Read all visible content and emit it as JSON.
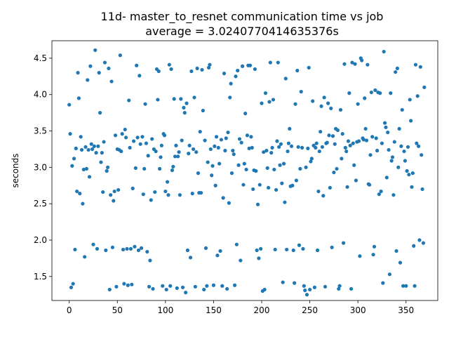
{
  "chart_data": {
    "type": "scatter",
    "title_line1": "11d- master_to_resnet communication time vs job",
    "title_line2": "average = 3.0240770414635376s",
    "xlabel": "",
    "ylabel": "seconds",
    "xlim": [
      -18,
      383
    ],
    "ylim": [
      1.17,
      4.74
    ],
    "xticks": [
      0,
      50,
      100,
      150,
      200,
      250,
      300,
      350
    ],
    "yticks": [
      1.5,
      2.0,
      2.5,
      3.0,
      3.5,
      4.0,
      4.5
    ],
    "ytick_labels": [
      "1.5",
      "2.0",
      "2.5",
      "3.0",
      "3.5",
      "4.0",
      "4.5"
    ],
    "marker_color": "#1f77b4",
    "grid": false,
    "points": [
      [
        0,
        3.86
      ],
      [
        1,
        3.46
      ],
      [
        2,
        1.35
      ],
      [
        3,
        3.02
      ],
      [
        4,
        1.4
      ],
      [
        5,
        3.12
      ],
      [
        6,
        1.87
      ],
      [
        7,
        3.26
      ],
      [
        8,
        2.67
      ],
      [
        9,
        4.3
      ],
      [
        10,
        3.95
      ],
      [
        11,
        2.64
      ],
      [
        12,
        3.42
      ],
      [
        13,
        3.24
      ],
      [
        14,
        2.5
      ],
      [
        15,
        2.97
      ],
      [
        16,
        1.77
      ],
      [
        17,
        3.28
      ],
      [
        18,
        2.98
      ],
      [
        19,
        4.2
      ],
      [
        20,
        3.24
      ],
      [
        21,
        2.87
      ],
      [
        22,
        4.39
      ],
      [
        23,
        3.32
      ],
      [
        24,
        3.25
      ],
      [
        25,
        1.94
      ],
      [
        26,
        3.29
      ],
      [
        27,
        4.61
      ],
      [
        28,
        3.2
      ],
      [
        29,
        1.88
      ],
      [
        30,
        3.29
      ],
      [
        31,
        4.3
      ],
      [
        32,
        3.75
      ],
      [
        33,
        3.07
      ],
      [
        34,
        3.2
      ],
      [
        35,
        2.66
      ],
      [
        36,
        3.35
      ],
      [
        37,
        4.44
      ],
      [
        38,
        1.86
      ],
      [
        39,
        2.95
      ],
      [
        40,
        3.0
      ],
      [
        41,
        4.36
      ],
      [
        42,
        1.32
      ],
      [
        43,
        2.62
      ],
      [
        44,
        4.18
      ],
      [
        45,
        1.9
      ],
      [
        46,
        2.54
      ],
      [
        47,
        2.67
      ],
      [
        48,
        3.44
      ],
      [
        49,
        1.36
      ],
      [
        50,
        3.25
      ],
      [
        51,
        2.69
      ],
      [
        52,
        3.24
      ],
      [
        53,
        4.54
      ],
      [
        54,
        3.22
      ],
      [
        55,
        3.46
      ],
      [
        56,
        1.87
      ],
      [
        57,
        1.4
      ],
      [
        58,
        3.52
      ],
      [
        59,
        3.41
      ],
      [
        60,
        1.88
      ],
      [
        61,
        1.38
      ],
      [
        62,
        3.92
      ],
      [
        63,
        3.27
      ],
      [
        64,
        1.88
      ],
      [
        65,
        1.39
      ],
      [
        66,
        2.71
      ],
      [
        67,
        3.36
      ],
      [
        68,
        1.91
      ],
      [
        69,
        2.99
      ],
      [
        70,
        4.4
      ],
      [
        71,
        3.41
      ],
      [
        72,
        1.86
      ],
      [
        73,
        4.26
      ],
      [
        74,
        3.32
      ],
      [
        75,
        1.89
      ],
      [
        76,
        3.42
      ],
      [
        77,
        2.63
      ],
      [
        78,
        2.98
      ],
      [
        79,
        3.87
      ],
      [
        80,
        3.33
      ],
      [
        81,
        1.84
      ],
      [
        82,
        3.16
      ],
      [
        83,
        1.36
      ],
      [
        84,
        1.72
      ],
      [
        85,
        2.55
      ],
      [
        86,
        3.39
      ],
      [
        87,
        1.33
      ],
      [
        88,
        3.25
      ],
      [
        89,
        2.66
      ],
      [
        90,
        3.22
      ],
      [
        91,
        4.35
      ],
      [
        92,
        3.93
      ],
      [
        93,
        4.32
      ],
      [
        94,
        2.98
      ],
      [
        95,
        3.14
      ],
      [
        96,
        3.3
      ],
      [
        97,
        1.37
      ],
      [
        98,
        3.46
      ],
      [
        99,
        3.44
      ],
      [
        100,
        2.67
      ],
      [
        101,
        1.32
      ],
      [
        102,
        2.8
      ],
      [
        103,
        2.62
      ],
      [
        104,
        4.41
      ],
      [
        105,
        1.37
      ],
      [
        106,
        4.35
      ],
      [
        107,
        2.96
      ],
      [
        108,
        3.01
      ],
      [
        109,
        3.94
      ],
      [
        110,
        3.15
      ],
      [
        111,
        3.3
      ],
      [
        112,
        1.34
      ],
      [
        113,
        3.15
      ],
      [
        114,
        3.21
      ],
      [
        115,
        2.62
      ],
      [
        116,
        3.94
      ],
      [
        117,
        3.37
      ],
      [
        118,
        1.35
      ],
      [
        119,
        3.82
      ],
      [
        120,
        3.75
      ],
      [
        121,
        1.28
      ],
      [
        122,
        3.88
      ],
      [
        123,
        1.86
      ],
      [
        124,
        3.19
      ],
      [
        125,
        3.3
      ],
      [
        126,
        1.76
      ],
      [
        127,
        4.32
      ],
      [
        128,
        2.64
      ],
      [
        129,
        3.25
      ],
      [
        130,
        3.96
      ],
      [
        131,
        1.36
      ],
      [
        132,
        3.21
      ],
      [
        133,
        4.36
      ],
      [
        134,
        2.92
      ],
      [
        135,
        2.65
      ],
      [
        136,
        3.49
      ],
      [
        137,
        2.65
      ],
      [
        138,
        4.34
      ],
      [
        139,
        3.78
      ],
      [
        140,
        1.32
      ],
      [
        141,
        3.37
      ],
      [
        142,
        1.89
      ],
      [
        143,
        1.37
      ],
      [
        144,
        3.07
      ],
      [
        145,
        4.37
      ],
      [
        146,
        4.41
      ],
      [
        147,
        3.25
      ],
      [
        148,
        2.89
      ],
      [
        149,
        3.02
      ],
      [
        150,
        1.38
      ],
      [
        151,
        3.29
      ],
      [
        152,
        2.75
      ],
      [
        153,
        3.42
      ],
      [
        154,
        1.79
      ],
      [
        155,
        3.27
      ],
      [
        156,
        3.05
      ],
      [
        157,
        1.85
      ],
      [
        158,
        3.38
      ],
      [
        159,
        1.37
      ],
      [
        160,
        2.58
      ],
      [
        161,
        4.29
      ],
      [
        162,
        3.23
      ],
      [
        163,
        3.4
      ],
      [
        164,
        1.33
      ],
      [
        165,
        3.48
      ],
      [
        166,
        2.51
      ],
      [
        167,
        3.96
      ],
      [
        168,
        4.15
      ],
      [
        169,
        2.92
      ],
      [
        170,
        3.23
      ],
      [
        171,
        3.18
      ],
      [
        172,
        1.38
      ],
      [
        173,
        4.25
      ],
      [
        174,
        1.94
      ],
      [
        175,
        4.33
      ],
      [
        176,
        3.03
      ],
      [
        177,
        3.39
      ],
      [
        178,
        1.72
      ],
      [
        179,
        3.34
      ],
      [
        180,
        4.39
      ],
      [
        181,
        2.76
      ],
      [
        182,
        3.05
      ],
      [
        183,
        3.74
      ],
      [
        184,
        2.97
      ],
      [
        185,
        3.44
      ],
      [
        186,
        4.4
      ],
      [
        187,
        3.26
      ],
      [
        188,
        4.4
      ],
      [
        189,
        3.42
      ],
      [
        190,
        3.27
      ],
      [
        191,
        2.7
      ],
      [
        192,
        2.96
      ],
      [
        193,
        4.35
      ],
      [
        194,
        2.95
      ],
      [
        195,
        1.86
      ],
      [
        196,
        2.49
      ],
      [
        197,
        1.75
      ],
      [
        198,
        2.76
      ],
      [
        199,
        1.88
      ],
      [
        200,
        3.88
      ],
      [
        201,
        1.3
      ],
      [
        202,
        3.21
      ],
      [
        203,
        1.32
      ],
      [
        204,
        4.02
      ],
      [
        205,
        3.23
      ],
      [
        206,
        2.99
      ],
      [
        207,
        2.72
      ],
      [
        208,
        3.9
      ],
      [
        209,
        4.44
      ],
      [
        210,
        3.2
      ],
      [
        211,
        3.27
      ],
      [
        212,
        3.93
      ],
      [
        213,
        2.97
      ],
      [
        214,
        1.87
      ],
      [
        215,
        2.69
      ],
      [
        216,
        3.36
      ],
      [
        217,
        4.44
      ],
      [
        218,
        3.28
      ],
      [
        219,
        3.03
      ],
      [
        220,
        3.32
      ],
      [
        221,
        2.78
      ],
      [
        222,
        1.42
      ],
      [
        223,
        3.05
      ],
      [
        224,
        2.52
      ],
      [
        225,
        4.22
      ],
      [
        226,
        1.87
      ],
      [
        227,
        3.22
      ],
      [
        228,
        3.33
      ],
      [
        229,
        3.53
      ],
      [
        230,
        2.74
      ],
      [
        231,
        3.29
      ],
      [
        232,
        2.75
      ],
      [
        233,
        1.86
      ],
      [
        234,
        1.41
      ],
      [
        235,
        3.87
      ],
      [
        236,
        2.82
      ],
      [
        237,
        4.33
      ],
      [
        238,
        3.28
      ],
      [
        239,
        1.93
      ],
      [
        240,
        2.98
      ],
      [
        241,
        4.04
      ],
      [
        242,
        3.27
      ],
      [
        243,
        1.88
      ],
      [
        244,
        1.37
      ],
      [
        245,
        1.31
      ],
      [
        246,
        3.0
      ],
      [
        247,
        1.25
      ],
      [
        248,
        3.26
      ],
      [
        249,
        4.37
      ],
      [
        250,
        1.32
      ],
      [
        251,
        3.08
      ],
      [
        252,
        3.12
      ],
      [
        253,
        3.91
      ],
      [
        254,
        3.3
      ],
      [
        255,
        1.35
      ],
      [
        256,
        3.27
      ],
      [
        257,
        3.33
      ],
      [
        258,
        1.86
      ],
      [
        259,
        2.67
      ],
      [
        260,
        3.22
      ],
      [
        261,
        3.49
      ],
      [
        262,
        3.84
      ],
      [
        263,
        3.28
      ],
      [
        264,
        2.61
      ],
      [
        265,
        3.96
      ],
      [
        266,
        1.36
      ],
      [
        267,
        3.33
      ],
      [
        268,
        3.34
      ],
      [
        269,
        3.88
      ],
      [
        270,
        3.44
      ],
      [
        271,
        2.72
      ],
      [
        272,
        3.81
      ],
      [
        273,
        1.9
      ],
      [
        274,
        3.43
      ],
      [
        275,
        2.93
      ],
      [
        276,
        3.32
      ],
      [
        277,
        3.53
      ],
      [
        278,
        2.98
      ],
      [
        279,
        3.51
      ],
      [
        280,
        1.33
      ],
      [
        281,
        1.37
      ],
      [
        282,
        3.79
      ],
      [
        283,
        3.12
      ],
      [
        284,
        3.46
      ],
      [
        285,
        1.96
      ],
      [
        286,
        4.42
      ],
      [
        287,
        3.27
      ],
      [
        288,
        3.22
      ],
      [
        289,
        2.73
      ],
      [
        290,
        3.36
      ],
      [
        291,
        4.02
      ],
      [
        292,
        3.3
      ],
      [
        293,
        1.33
      ],
      [
        294,
        4.44
      ],
      [
        295,
        3.33
      ],
      [
        296,
        3.03
      ],
      [
        297,
        4.42
      ],
      [
        298,
        2.82
      ],
      [
        299,
        3.35
      ],
      [
        300,
        3.87
      ],
      [
        301,
        3.36
      ],
      [
        302,
        1.78
      ],
      [
        303,
        4.5
      ],
      [
        304,
        4.47
      ],
      [
        305,
        3.4
      ],
      [
        306,
        3.38
      ],
      [
        307,
        3.95
      ],
      [
        308,
        3.53
      ],
      [
        309,
        3.37
      ],
      [
        310,
        4.41
      ],
      [
        311,
        2.77
      ],
      [
        312,
        2.76
      ],
      [
        313,
        3.17
      ],
      [
        314,
        4.03
      ],
      [
        315,
        3.42
      ],
      [
        316,
        1.8
      ],
      [
        317,
        1.91
      ],
      [
        318,
        4.06
      ],
      [
        319,
        3.4
      ],
      [
        320,
        3.23
      ],
      [
        321,
        4.03
      ],
      [
        322,
        2.63
      ],
      [
        323,
        4.02
      ],
      [
        324,
        2.67
      ],
      [
        325,
        3.33
      ],
      [
        326,
        1.41
      ],
      [
        327,
        4.59
      ],
      [
        328,
        3.61
      ],
      [
        329,
        3.55
      ],
      [
        330,
        2.86
      ],
      [
        331,
        3.48
      ],
      [
        332,
        3.24
      ],
      [
        333,
        1.53
      ],
      [
        334,
        4.02
      ],
      [
        335,
        3.09
      ],
      [
        336,
        3.14
      ],
      [
        337,
        2.62
      ],
      [
        338,
        3.35
      ],
      [
        339,
        4.31
      ],
      [
        340,
        1.85
      ],
      [
        341,
        4.36
      ],
      [
        342,
        3.0
      ],
      [
        343,
        3.53
      ],
      [
        344,
        1.69
      ],
      [
        345,
        3.29
      ],
      [
        346,
        3.79
      ],
      [
        347,
        1.37
      ],
      [
        348,
        3.22
      ],
      [
        349,
        3.09
      ],
      [
        350,
        1.37
      ],
      [
        351,
        2.95
      ],
      [
        352,
        3.28
      ],
      [
        353,
        2.9
      ],
      [
        354,
        3.93
      ],
      [
        355,
        3.64
      ],
      [
        356,
        2.73
      ],
      [
        357,
        2.92
      ],
      [
        358,
        1.92
      ],
      [
        359,
        1.37
      ],
      [
        360,
        4.41
      ],
      [
        361,
        3.33
      ],
      [
        362,
        3.98
      ],
      [
        363,
        3.29
      ],
      [
        364,
        2.0
      ],
      [
        365,
        4.38
      ],
      [
        366,
        3.17
      ],
      [
        367,
        2.7
      ],
      [
        368,
        1.96
      ],
      [
        369,
        4.1
      ]
    ]
  }
}
